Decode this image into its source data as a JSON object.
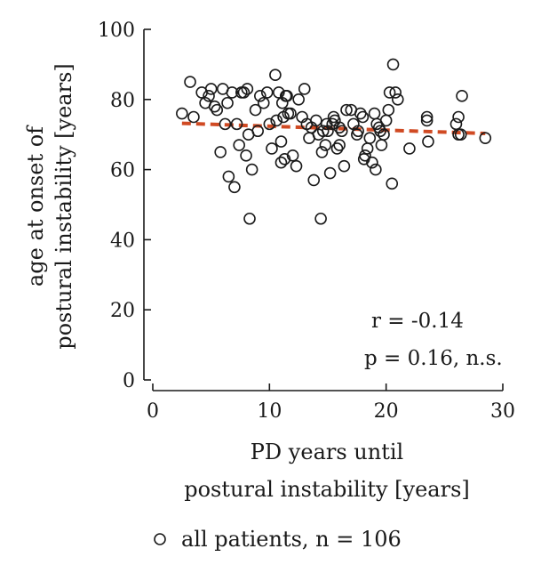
{
  "chart_data": {
    "type": "scatter",
    "xlabel": [
      "PD years until",
      "postural instability [years]"
    ],
    "ylabel": [
      "age at onset of",
      "postural instability [years]"
    ],
    "xlim": [
      0,
      30
    ],
    "ylim": [
      0,
      100
    ],
    "x_ticks": [
      0,
      10,
      20,
      30
    ],
    "y_ticks": [
      0,
      20,
      40,
      60,
      80,
      100
    ],
    "grid": false,
    "legend_position": "bottom",
    "series": [
      {
        "name": "all patients, n = 106",
        "marker": "open-circle",
        "x": [
          2.5,
          3.2,
          3.5,
          4.2,
          4.5,
          4.8,
          5,
          5.3,
          5.5,
          5.8,
          6,
          6.2,
          6.4,
          6.5,
          6.8,
          7,
          7.2,
          7.4,
          7.6,
          7.8,
          8,
          8.1,
          8.2,
          8.3,
          8.5,
          8.8,
          9,
          9.2,
          9.5,
          9.8,
          10,
          10.2,
          10.5,
          10.6,
          10.8,
          11,
          11,
          11.1,
          11.2,
          11.3,
          11.4,
          11.5,
          11.6,
          11.8,
          12,
          12.3,
          12.5,
          12.8,
          13,
          13.2,
          13.4,
          13.6,
          13.8,
          14,
          14.2,
          14.4,
          14.5,
          14.6,
          14.8,
          14.9,
          15,
          15.2,
          15.4,
          15.5,
          15.6,
          15.8,
          16,
          16,
          16.2,
          16.4,
          16.6,
          17,
          17.2,
          17.5,
          17.6,
          17.8,
          18,
          18.1,
          18.2,
          18.4,
          18.6,
          18.8,
          19,
          19.1,
          19.2,
          19.4,
          19.5,
          19.6,
          19.8,
          20,
          20.2,
          20.3,
          20.5,
          20.6,
          20.8,
          21,
          22,
          23.5,
          23.5,
          23.6,
          26,
          26.2,
          26.4,
          26.5,
          26.2,
          28.5
        ],
        "y": [
          76,
          85,
          75,
          82,
          79,
          81,
          83,
          78,
          77,
          65,
          83,
          73,
          79,
          58,
          82,
          55,
          73,
          67,
          82,
          82,
          64,
          83,
          70,
          46,
          60,
          77,
          71,
          81,
          79,
          82,
          73,
          66,
          87,
          74,
          82,
          68,
          62,
          79,
          75,
          63,
          81,
          81,
          76,
          76,
          64,
          61,
          80,
          75,
          83,
          73,
          69,
          72,
          57,
          74,
          70,
          46,
          65,
          71,
          67,
          73,
          71,
          59,
          73,
          75,
          74,
          66,
          67,
          72,
          71,
          61,
          77,
          77,
          73,
          70,
          71,
          76,
          75,
          63,
          64,
          66,
          69,
          62,
          76,
          60,
          73,
          72,
          71,
          67,
          70,
          74,
          77,
          82,
          56,
          90,
          82,
          80,
          66,
          74,
          75,
          68,
          73,
          75,
          70,
          81,
          70,
          69
        ],
        "trend_line": {
          "x": [
            2.5,
            28.5
          ],
          "y": [
            73.2,
            70.3
          ],
          "style": "dashed",
          "color": "#d04a23"
        }
      }
    ],
    "annotations": [
      "r = -0.14",
      "p = 0.16, n.s."
    ]
  }
}
